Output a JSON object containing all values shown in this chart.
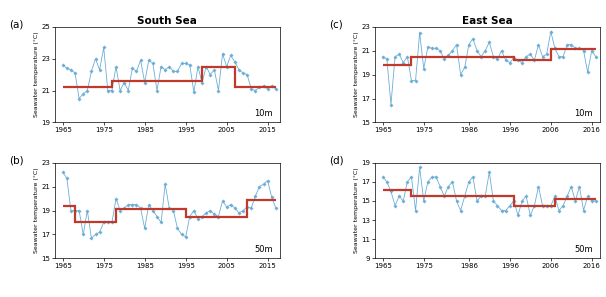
{
  "south_sea_10m": {
    "years": [
      1965,
      1966,
      1967,
      1968,
      1969,
      1970,
      1971,
      1972,
      1973,
      1974,
      1975,
      1976,
      1977,
      1978,
      1979,
      1980,
      1981,
      1982,
      1983,
      1984,
      1985,
      1986,
      1987,
      1988,
      1989,
      1990,
      1991,
      1992,
      1993,
      1994,
      1995,
      1996,
      1997,
      1998,
      1999,
      2000,
      2001,
      2002,
      2003,
      2004,
      2005,
      2006,
      2007,
      2008,
      2009,
      2010,
      2011,
      2012,
      2013,
      2014,
      2015,
      2016,
      2017
    ],
    "values": [
      22.6,
      22.4,
      22.3,
      22.1,
      20.5,
      20.8,
      21.0,
      22.2,
      23.0,
      22.3,
      23.7,
      21.0,
      21.0,
      22.5,
      21.0,
      21.5,
      21.0,
      22.4,
      22.2,
      22.9,
      21.5,
      22.9,
      22.7,
      21.0,
      22.5,
      22.3,
      22.5,
      22.2,
      22.2,
      22.7,
      22.7,
      22.6,
      20.9,
      22.5,
      21.5,
      22.5,
      22.0,
      22.3,
      21.0,
      23.3,
      22.5,
      23.2,
      22.8,
      22.3,
      22.1,
      22.0,
      21.1,
      21.0,
      21.2,
      21.3,
      21.1,
      21.3,
      21.1
    ],
    "red_segments": [
      {
        "x_start": 1965,
        "x_end": 1977,
        "y": 21.2
      },
      {
        "x_start": 1977,
        "x_end": 1999,
        "y": 21.6
      },
      {
        "x_start": 1999,
        "x_end": 2007,
        "y": 22.5
      },
      {
        "x_start": 2007,
        "x_end": 2017,
        "y": 21.2
      }
    ],
    "ylim": [
      19,
      25
    ],
    "yticks": [
      19,
      21,
      23,
      25
    ],
    "xlim": [
      1963,
      2018
    ],
    "xticks": [
      1965,
      1975,
      1985,
      1995,
      2005,
      2015
    ],
    "depth": "10m",
    "title": "South Sea"
  },
  "south_sea_50m": {
    "years": [
      1965,
      1966,
      1967,
      1968,
      1969,
      1970,
      1971,
      1972,
      1973,
      1974,
      1975,
      1976,
      1977,
      1978,
      1979,
      1980,
      1981,
      1982,
      1983,
      1984,
      1985,
      1986,
      1987,
      1988,
      1989,
      1990,
      1991,
      1992,
      1993,
      1994,
      1995,
      1996,
      1997,
      1998,
      1999,
      2000,
      2001,
      2002,
      2003,
      2004,
      2005,
      2006,
      2007,
      2008,
      2009,
      2010,
      2011,
      2012,
      2013,
      2014,
      2015,
      2016,
      2017
    ],
    "values": [
      22.2,
      21.7,
      19.0,
      19.0,
      19.0,
      17.0,
      19.0,
      16.7,
      17.0,
      17.2,
      18.0,
      18.0,
      18.0,
      20.0,
      19.0,
      19.2,
      19.5,
      19.5,
      19.5,
      19.2,
      17.5,
      19.5,
      19.0,
      18.5,
      18.0,
      21.2,
      19.2,
      19.0,
      17.5,
      17.0,
      16.8,
      18.5,
      19.0,
      18.3,
      18.5,
      18.8,
      19.0,
      18.7,
      18.5,
      19.8,
      19.3,
      19.5,
      19.2,
      18.8,
      19.0,
      19.3,
      19.2,
      20.2,
      21.0,
      21.2,
      21.5,
      20.1,
      19.2
    ],
    "red_segments": [
      {
        "x_start": 1965,
        "x_end": 1968,
        "y": 19.4
      },
      {
        "x_start": 1968,
        "x_end": 1978,
        "y": 18.0
      },
      {
        "x_start": 1978,
        "x_end": 1995,
        "y": 19.1
      },
      {
        "x_start": 1995,
        "x_end": 2010,
        "y": 18.5
      },
      {
        "x_start": 2010,
        "x_end": 2017,
        "y": 19.9
      }
    ],
    "ylim": [
      15,
      23
    ],
    "yticks": [
      15,
      17,
      19,
      21,
      23
    ],
    "xlim": [
      1963,
      2018
    ],
    "xticks": [
      1965,
      1975,
      1985,
      1995,
      2005,
      2015
    ],
    "depth": "50m",
    "title": null
  },
  "east_sea_10m": {
    "years": [
      1965,
      1966,
      1967,
      1968,
      1969,
      1970,
      1971,
      1972,
      1973,
      1974,
      1975,
      1976,
      1977,
      1978,
      1979,
      1980,
      1981,
      1982,
      1983,
      1984,
      1985,
      1986,
      1987,
      1988,
      1989,
      1990,
      1991,
      1992,
      1993,
      1994,
      1995,
      1996,
      1997,
      1998,
      1999,
      2000,
      2001,
      2002,
      2003,
      2004,
      2005,
      2006,
      2007,
      2008,
      2009,
      2010,
      2011,
      2012,
      2013,
      2014,
      2015,
      2016,
      2017
    ],
    "values": [
      20.5,
      20.3,
      16.5,
      20.5,
      20.7,
      20.0,
      20.5,
      18.5,
      18.5,
      22.5,
      19.5,
      21.3,
      21.2,
      21.2,
      21.0,
      20.3,
      20.6,
      21.0,
      21.5,
      19.0,
      19.6,
      21.5,
      22.0,
      21.0,
      20.5,
      21.0,
      21.7,
      20.5,
      20.3,
      21.0,
      20.2,
      20.0,
      20.4,
      20.2,
      20.0,
      20.5,
      20.7,
      20.2,
      21.5,
      20.5,
      20.7,
      22.6,
      21.2,
      20.5,
      20.5,
      21.5,
      21.5,
      21.2,
      21.2,
      21.0,
      19.2,
      21.0,
      20.5
    ],
    "red_segments": [
      {
        "x_start": 1965,
        "x_end": 1972,
        "y": 19.8
      },
      {
        "x_start": 1972,
        "x_end": 1997,
        "y": 20.5
      },
      {
        "x_start": 1997,
        "x_end": 2006,
        "y": 20.2
      },
      {
        "x_start": 2006,
        "x_end": 2017,
        "y": 21.1
      }
    ],
    "ylim": [
      15,
      23
    ],
    "yticks": [
      15,
      17,
      19,
      21,
      23
    ],
    "xlim": [
      1963,
      2018
    ],
    "xticks": [
      1965,
      1975,
      1986,
      1996,
      2006,
      2016
    ],
    "depth": "10m",
    "title": "East Sea"
  },
  "east_sea_50m": {
    "years": [
      1965,
      1966,
      1967,
      1968,
      1969,
      1970,
      1971,
      1972,
      1973,
      1974,
      1975,
      1976,
      1977,
      1978,
      1979,
      1980,
      1981,
      1982,
      1983,
      1984,
      1985,
      1986,
      1987,
      1988,
      1989,
      1990,
      1991,
      1992,
      1993,
      1994,
      1995,
      1996,
      1997,
      1998,
      1999,
      2000,
      2001,
      2002,
      2003,
      2004,
      2005,
      2006,
      2007,
      2008,
      2009,
      2010,
      2011,
      2012,
      2013,
      2014,
      2015,
      2016,
      2017
    ],
    "values": [
      17.5,
      17.0,
      16.0,
      14.5,
      15.5,
      15.0,
      17.0,
      17.5,
      14.0,
      18.5,
      15.0,
      17.0,
      17.5,
      17.5,
      16.5,
      15.5,
      16.5,
      17.0,
      15.0,
      14.0,
      15.5,
      17.0,
      17.5,
      15.0,
      15.5,
      15.5,
      18.0,
      15.0,
      14.5,
      14.0,
      14.0,
      14.5,
      15.0,
      13.5,
      15.0,
      15.5,
      13.5,
      14.5,
      16.5,
      14.5,
      14.5,
      14.5,
      15.5,
      14.0,
      14.5,
      15.5,
      16.5,
      15.0,
      16.5,
      14.0,
      15.5,
      15.0,
      15.0
    ],
    "red_segments": [
      {
        "x_start": 1965,
        "x_end": 1972,
        "y": 16.1
      },
      {
        "x_start": 1972,
        "x_end": 1997,
        "y": 15.5
      },
      {
        "x_start": 1997,
        "x_end": 2007,
        "y": 14.5
      },
      {
        "x_start": 2007,
        "x_end": 2017,
        "y": 15.2
      }
    ],
    "ylim": [
      9,
      19
    ],
    "yticks": [
      9,
      11,
      13,
      15,
      17,
      19
    ],
    "xlim": [
      1963,
      2018
    ],
    "xticks": [
      1965,
      1975,
      1986,
      1996,
      2006,
      2016
    ],
    "depth": "50m",
    "title": null
  },
  "line_color": "#6baed6",
  "marker_color": "#6baed6",
  "red_color": "#c0392b",
  "bg_color": "#ffffff",
  "ylabel": "Seawater temperature (°C)",
  "panels": [
    {
      "key": "south_sea_10m",
      "label": "(a)",
      "col": 0,
      "row": 0
    },
    {
      "key": "south_sea_50m",
      "label": "(b)",
      "col": 0,
      "row": 1
    },
    {
      "key": "east_sea_10m",
      "label": "(c)",
      "col": 1,
      "row": 0
    },
    {
      "key": "east_sea_50m",
      "label": "(d)",
      "col": 1,
      "row": 1
    }
  ]
}
